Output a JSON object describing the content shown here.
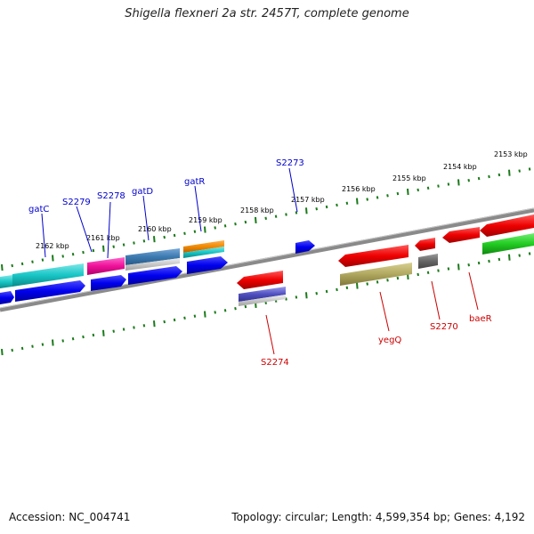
{
  "title": "Shigella flexneri 2a str. 2457T, complete genome",
  "footer": {
    "accession": "Accession: NC_004741",
    "summary": "Topology: circular; Length: 4,599,354 bp; Genes: 4,192"
  },
  "ticks": [
    "2153 kbp",
    "2154 kbp",
    "2155 kbp",
    "2156 kbp",
    "2157 kbp",
    "2158 kbp",
    "2159 kbp",
    "2160 kbp",
    "2161 kbp",
    "2162 kbp"
  ],
  "genes_top": [
    "gatC",
    "S2279",
    "S2278",
    "gatD",
    "gatR",
    "S2273"
  ],
  "genes_bottom": [
    "S2274",
    "yegQ",
    "S2270",
    "baeR"
  ],
  "colors": {
    "top_strand_label": "#0000cc",
    "bottom_strand_label": "#cc0000",
    "tick": "#1a7a1a",
    "backbone": "#808080"
  }
}
